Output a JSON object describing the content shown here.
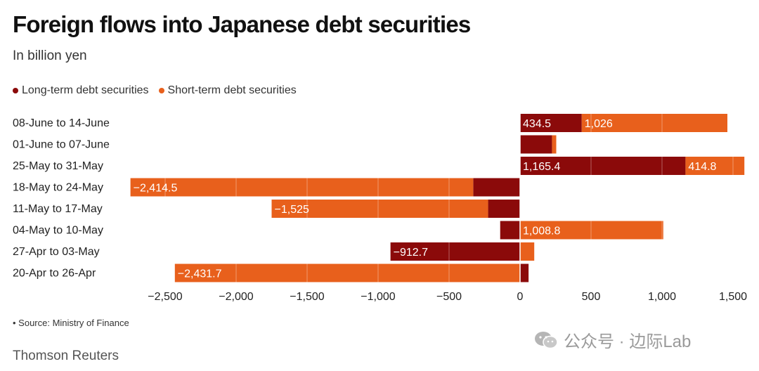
{
  "title": "Foreign flows into Japanese debt securities",
  "subtitle": "In billion yen",
  "legend": [
    {
      "label": "Long-term debt securities",
      "color": "#8b0a0a"
    },
    {
      "label": "Short-term debt securities",
      "color": "#e8601c"
    }
  ],
  "source": "• Source: Ministry of Finance",
  "publisher": "Thomson Reuters",
  "watermark": "公众号 · 边际Lab",
  "chart_data": {
    "type": "bar",
    "orientation": "horizontal",
    "stacked": true,
    "categories": [
      "08-June to 14-June",
      "01-June to 07-June",
      "25-May to 31-May",
      "18-May to 24-May",
      "11-May to 17-May",
      "04-May to 10-May",
      "27-Apr to 03-May",
      "20-Apr to 26-Apr"
    ],
    "series": [
      {
        "name": "Long-term debt securities",
        "color": "#8b0a0a",
        "values": [
          434.5,
          225,
          1165.4,
          -330,
          -225,
          -140,
          -912.7,
          60
        ],
        "labels": [
          "434.5",
          "",
          "1,165.4",
          "",
          "",
          "",
          "−912.7",
          ""
        ]
      },
      {
        "name": "Short-term debt securities",
        "color": "#e8601c",
        "values": [
          1026,
          30,
          414.8,
          -2414.5,
          -1525,
          1008.8,
          100,
          -2431.7
        ],
        "labels": [
          "1,026",
          "",
          "414.8",
          "−2,414.5",
          "−1,525",
          "1,008.8",
          "",
          "−2,431.7"
        ]
      }
    ],
    "xlim": [
      -2750,
      1580
    ],
    "xticks": [
      -2500,
      -2000,
      -1500,
      -1000,
      -500,
      0,
      500,
      1000,
      1500
    ],
    "xtick_labels": [
      "−2,500",
      "−2,000",
      "−1,500",
      "−1,000",
      "−500",
      "0",
      "500",
      "1,000",
      "1,500"
    ],
    "grid": "vertical",
    "legend_position": "top-left"
  }
}
